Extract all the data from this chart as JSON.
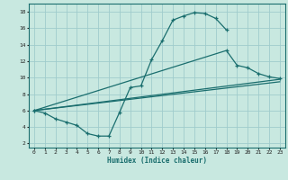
{
  "xlabel": "Humidex (Indice chaleur)",
  "xlim": [
    -0.5,
    23.5
  ],
  "ylim": [
    1.5,
    19
  ],
  "xticks": [
    0,
    1,
    2,
    3,
    4,
    5,
    6,
    7,
    8,
    9,
    10,
    11,
    12,
    13,
    14,
    15,
    16,
    17,
    18,
    19,
    20,
    21,
    22,
    23
  ],
  "yticks": [
    2,
    4,
    6,
    8,
    10,
    12,
    14,
    16,
    18
  ],
  "bg_color": "#c8e8e0",
  "grid_color": "#a0cccc",
  "line_color": "#1a6e6e",
  "line1_x": [
    0,
    1,
    2,
    3,
    4,
    5,
    6,
    7,
    8,
    9,
    10,
    11,
    12,
    13,
    14,
    15,
    16,
    17,
    18
  ],
  "line1_y": [
    6.0,
    5.7,
    5.0,
    4.6,
    4.2,
    3.2,
    2.9,
    2.9,
    5.8,
    8.8,
    9.0,
    12.2,
    14.5,
    17.0,
    17.5,
    17.9,
    17.8,
    17.2,
    15.8
  ],
  "line2_x": [
    0,
    18,
    19,
    20,
    21,
    22,
    23
  ],
  "line2_y": [
    6.0,
    13.3,
    11.5,
    11.2,
    10.5,
    10.1,
    9.9
  ],
  "line3_x": [
    0,
    23
  ],
  "line3_y": [
    6.0,
    9.8
  ],
  "line4_x": [
    0,
    23
  ],
  "line4_y": [
    6.0,
    9.5
  ]
}
